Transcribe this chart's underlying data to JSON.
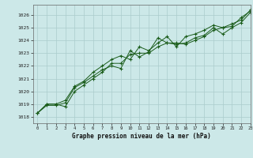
{
  "title": "Graphe pression niveau de la mer (hPa)",
  "bg_color": "#cce8e8",
  "grid_color": "#aacccc",
  "line_color": "#1a5c1a",
  "xlim": [
    -0.5,
    23
  ],
  "ylim": [
    1017.5,
    1026.8
  ],
  "yticks": [
    1018,
    1019,
    1020,
    1021,
    1022,
    1023,
    1024,
    1025,
    1026
  ],
  "xticks": [
    0,
    1,
    2,
    3,
    4,
    5,
    6,
    7,
    8,
    9,
    10,
    11,
    12,
    13,
    14,
    15,
    16,
    17,
    18,
    19,
    20,
    21,
    22,
    23
  ],
  "series1": {
    "x": [
      0,
      1,
      2,
      3,
      4,
      5,
      6,
      7,
      8,
      9,
      10,
      11,
      12,
      13,
      14,
      15,
      16,
      17,
      18,
      19,
      20,
      21,
      22,
      23
    ],
    "y": [
      1018.3,
      1019.0,
      1019.0,
      1018.8,
      1020.0,
      1020.5,
      1021.0,
      1021.5,
      1022.2,
      1022.2,
      1022.9,
      1023.0,
      1023.0,
      1023.5,
      1023.8,
      1023.8,
      1023.7,
      1024.0,
      1024.3,
      1024.8,
      1025.0,
      1025.1,
      1025.8,
      1026.3
    ]
  },
  "series2": {
    "x": [
      0,
      1,
      2,
      3,
      4,
      5,
      6,
      7,
      8,
      9,
      10,
      11,
      12,
      13,
      14,
      15,
      16,
      17,
      18,
      19,
      20,
      21,
      22,
      23
    ],
    "y": [
      1018.3,
      1018.9,
      1018.9,
      1019.1,
      1020.3,
      1020.7,
      1021.2,
      1021.7,
      1022.0,
      1021.8,
      1023.2,
      1022.7,
      1023.1,
      1024.2,
      1023.8,
      1023.7,
      1023.8,
      1024.2,
      1024.4,
      1025.0,
      1024.5,
      1025.0,
      1025.4,
      1026.2
    ]
  },
  "series3": {
    "x": [
      0,
      1,
      2,
      3,
      4,
      5,
      6,
      7,
      8,
      9,
      10,
      11,
      12,
      13,
      14,
      15,
      16,
      17,
      18,
      19,
      20,
      21,
      22,
      23
    ],
    "y": [
      1018.3,
      1019.0,
      1019.0,
      1019.3,
      1020.4,
      1020.8,
      1021.5,
      1022.0,
      1022.5,
      1022.8,
      1022.5,
      1023.5,
      1023.2,
      1023.8,
      1024.3,
      1023.5,
      1024.3,
      1024.5,
      1024.8,
      1025.2,
      1025.0,
      1025.3,
      1025.6,
      1026.4
    ]
  }
}
